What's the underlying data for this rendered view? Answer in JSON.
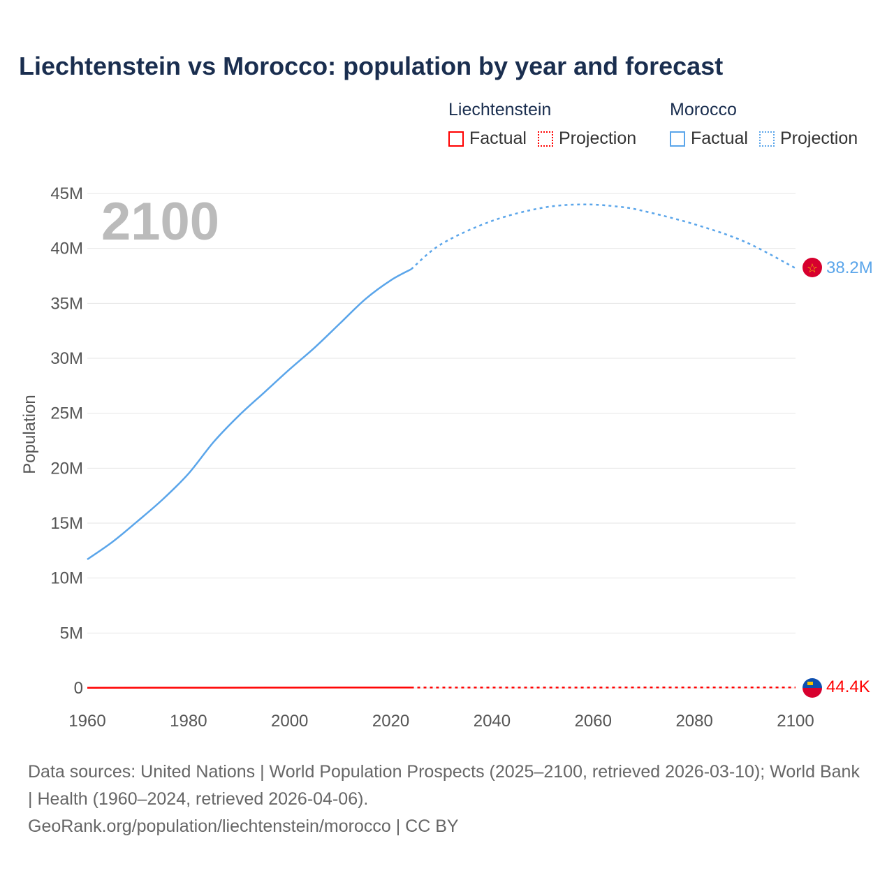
{
  "title": "Liechtenstein vs Morocco: population by year and forecast",
  "legend": [
    {
      "group": "Liechtenstein",
      "color": "#ff0000",
      "factual": "Factual",
      "projection": "Projection"
    },
    {
      "group": "Morocco",
      "color": "#5aa5ea",
      "factual": "Factual",
      "projection": "Projection"
    }
  ],
  "year_overlay": "2100",
  "footer": {
    "sources": "Data sources: United Nations | World Population Prospects (2025–2100, retrieved 2026-03-10); World Bank | Health (1960–2024, retrieved 2026-04-06).",
    "link": "GeoRank.org/population/liechtenstein/morocco | CC BY"
  },
  "chart_data": {
    "type": "line",
    "ylabel": "Population",
    "xlim": [
      1960,
      2100
    ],
    "ylim": [
      0,
      45000000
    ],
    "x_ticks": [
      "1960",
      "1980",
      "2000",
      "2020",
      "2040",
      "2060",
      "2080",
      "2100"
    ],
    "y_ticks": [
      {
        "v": 0,
        "l": "0"
      },
      {
        "v": 5000000,
        "l": "5M"
      },
      {
        "v": 10000000,
        "l": "10M"
      },
      {
        "v": 15000000,
        "l": "15M"
      },
      {
        "v": 20000000,
        "l": "20M"
      },
      {
        "v": 25000000,
        "l": "25M"
      },
      {
        "v": 30000000,
        "l": "30M"
      },
      {
        "v": 35000000,
        "l": "35M"
      },
      {
        "v": 40000000,
        "l": "40M"
      },
      {
        "v": 45000000,
        "l": "45M"
      }
    ],
    "grid": true,
    "series": [
      {
        "name": "Morocco",
        "color": "#5aa5ea",
        "end_label": "38.2M",
        "factual": [
          [
            1960,
            11700000.0
          ],
          [
            1965,
            13300000.0
          ],
          [
            1970,
            15200000.0
          ],
          [
            1975,
            17200000.0
          ],
          [
            1980,
            19500000.0
          ],
          [
            1985,
            22400000.0
          ],
          [
            1990,
            24800000.0
          ],
          [
            1995,
            26900000.0
          ],
          [
            2000,
            29000000.0
          ],
          [
            2005,
            31000000.0
          ],
          [
            2010,
            33200000.0
          ],
          [
            2015,
            35400000.0
          ],
          [
            2020,
            37100000.0
          ],
          [
            2024,
            38100000.0
          ]
        ],
        "projection": [
          [
            2024,
            38100000.0
          ],
          [
            2030,
            40400000.0
          ],
          [
            2040,
            42500000.0
          ],
          [
            2050,
            43700000.0
          ],
          [
            2058,
            44000000.0
          ],
          [
            2065,
            43800000.0
          ],
          [
            2070,
            43400000.0
          ],
          [
            2080,
            42200000.0
          ],
          [
            2090,
            40600000.0
          ],
          [
            2100,
            38200000.0
          ]
        ]
      },
      {
        "name": "Liechtenstein",
        "color": "#ff0000",
        "end_label": "44.4K",
        "factual": [
          [
            1960,
            16000
          ],
          [
            1980,
            25000
          ],
          [
            2000,
            33000
          ],
          [
            2024,
            40000
          ]
        ],
        "projection": [
          [
            2024,
            40000
          ],
          [
            2060,
            43500
          ],
          [
            2100,
            44400
          ]
        ]
      }
    ]
  }
}
